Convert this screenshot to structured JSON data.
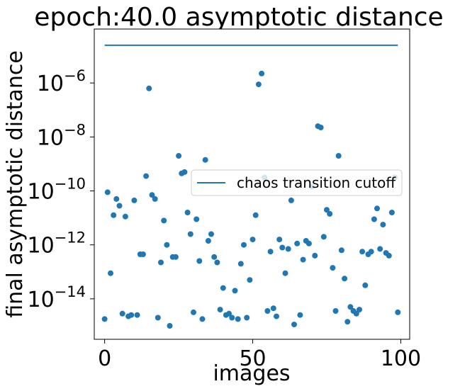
{
  "chart_data": {
    "type": "scatter",
    "title": "epoch:40.0 asymptotic distance",
    "xlabel": "images",
    "ylabel": "final asymptotic distance",
    "yscale": "log",
    "xlim": [
      -3.5,
      103
    ],
    "ylim_log10": [
      -15.5,
      -4.0
    ],
    "x_ticks": [
      0,
      50,
      100
    ],
    "y_ticks_log10": [
      -14,
      -12,
      -10,
      -8,
      -6
    ],
    "y_tick_labels": [
      "10",
      "10",
      "10",
      "10",
      "10"
    ],
    "y_tick_exponents": [
      "−14",
      "−12",
      "−10",
      "−8",
      "−6"
    ],
    "grid": false,
    "legend": {
      "position": "right",
      "entries": [
        "chaos transition cutoff"
      ]
    },
    "colors": {
      "series": "#1f77b4"
    },
    "cutoff_line": {
      "name": "chaos transition cutoff",
      "x": [
        0,
        99
      ],
      "log10_y": -4.6
    },
    "scatter_log10_y": [
      [
        0,
        -14.75
      ],
      [
        1,
        -10.05
      ],
      [
        2,
        -13.05
      ],
      [
        3,
        -10.9
      ],
      [
        4,
        -10.3
      ],
      [
        5,
        -10.55
      ],
      [
        6,
        -14.55
      ],
      [
        7,
        -10.95
      ],
      [
        8,
        -14.65
      ],
      [
        9,
        -14.6
      ],
      [
        10,
        -10.35
      ],
      [
        11,
        -14.6
      ],
      [
        12,
        -12.35
      ],
      [
        13,
        -12.35
      ],
      [
        14,
        -9.45
      ],
      [
        15,
        -6.2
      ],
      [
        16,
        -10.15
      ],
      [
        17,
        -10.3
      ],
      [
        18,
        -14.7
      ],
      [
        19,
        -12.65
      ],
      [
        20,
        -11.1
      ],
      [
        21,
        -12.0
      ],
      [
        22,
        -15.0
      ],
      [
        23,
        -12.45
      ],
      [
        24,
        -12.45
      ],
      [
        25,
        -8.7
      ],
      [
        26,
        -9.35
      ],
      [
        27,
        -9.3
      ],
      [
        28,
        -10.8
      ],
      [
        29,
        -11.6
      ],
      [
        30,
        -14.5
      ],
      [
        31,
        -11.05
      ],
      [
        32,
        -12.6
      ],
      [
        33,
        -14.75
      ],
      [
        34,
        -8.85
      ],
      [
        35,
        -11.85
      ],
      [
        36,
        -11.6
      ],
      [
        37,
        -12.45
      ],
      [
        38,
        -12.65
      ],
      [
        39,
        -14.4
      ],
      [
        40,
        -13.6
      ],
      [
        41,
        -14.6
      ],
      [
        42,
        -14.55
      ],
      [
        43,
        -14.7
      ],
      [
        44,
        -13.7
      ],
      [
        45,
        -14.75
      ],
      [
        46,
        -12.7
      ],
      [
        47,
        -12.0
      ],
      [
        48,
        -14.7
      ],
      [
        49,
        -13.3
      ],
      [
        50,
        -11.8
      ],
      [
        51,
        -10.9
      ],
      [
        52,
        -6.05
      ],
      [
        53,
        -5.65
      ],
      [
        54,
        -9.5
      ],
      [
        55,
        -14.45
      ],
      [
        56,
        -12.25
      ],
      [
        57,
        -14.35
      ],
      [
        58,
        -14.65
      ],
      [
        59,
        -11.8
      ],
      [
        60,
        -12.1
      ],
      [
        61,
        -13.05
      ],
      [
        62,
        -12.15
      ],
      [
        63,
        -10.35
      ],
      [
        64,
        -14.95
      ],
      [
        65,
        -11.95
      ],
      [
        66,
        -14.6
      ],
      [
        67,
        -12.55
      ],
      [
        68,
        -11.85
      ],
      [
        69,
        -11.95
      ],
      [
        70,
        -9.85
      ],
      [
        71,
        -12.4
      ],
      [
        72,
        -7.6
      ],
      [
        73,
        -7.65
      ],
      [
        74,
        -11.7
      ],
      [
        75,
        -10.7
      ],
      [
        76,
        -10.85
      ],
      [
        77,
        -12.85
      ],
      [
        78,
        -14.45
      ],
      [
        79,
        -8.7
      ],
      [
        80,
        -12.2
      ],
      [
        81,
        -13.25
      ],
      [
        82,
        -14.85
      ],
      [
        83,
        -14.3
      ],
      [
        84,
        -14.45
      ],
      [
        85,
        -14.55
      ],
      [
        86,
        -14.4
      ],
      [
        87,
        -12.25
      ],
      [
        88,
        -13.5
      ],
      [
        89,
        -12.35
      ],
      [
        90,
        -12.25
      ],
      [
        91,
        -11.05
      ],
      [
        92,
        -10.65
      ],
      [
        93,
        -12.15
      ],
      [
        94,
        -11.25
      ],
      [
        95,
        -12.3
      ],
      [
        96,
        -12.4
      ],
      [
        97,
        -10.8
      ],
      [
        98,
        -9.5
      ],
      [
        99,
        -14.5
      ]
    ]
  }
}
